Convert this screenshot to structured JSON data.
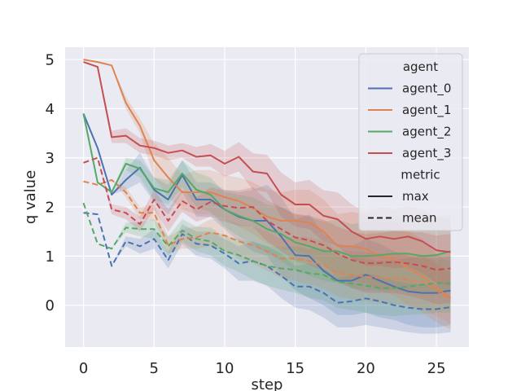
{
  "chart_data": {
    "type": "line",
    "title": "",
    "xlabel": "step",
    "ylabel": "q value",
    "xlim": [
      -1.3,
      27.3
    ],
    "ylim": [
      -0.85,
      5.25
    ],
    "xticks": [
      0,
      5,
      10,
      15,
      20,
      25
    ],
    "yticks": [
      0,
      1,
      2,
      3,
      4,
      5
    ],
    "grid": true,
    "legend_position": "top-right",
    "legend": {
      "hue_title": "agent",
      "style_title": "metric",
      "style_entries": [
        {
          "label": "max",
          "dash": "solid"
        },
        {
          "label": "mean",
          "dash": "dashed"
        }
      ]
    },
    "x": [
      0,
      1,
      2,
      3,
      4,
      5,
      6,
      7,
      8,
      9,
      10,
      11,
      12,
      13,
      14,
      15,
      16,
      17,
      18,
      19,
      20,
      21,
      22,
      23,
      24,
      25,
      26
    ],
    "series": [
      {
        "name": "agent_0",
        "metric": "max",
        "color": "#4c72b0",
        "values": [
          3.9,
          3.2,
          2.25,
          2.55,
          2.8,
          2.35,
          2.15,
          2.65,
          2.15,
          2.15,
          1.95,
          1.8,
          1.72,
          1.72,
          1.4,
          1.02,
          1.0,
          0.7,
          0.5,
          0.5,
          0.62,
          0.5,
          0.38,
          0.28,
          0.25,
          0.25,
          0.3
        ],
        "lower": [
          3.9,
          3.2,
          2.25,
          2.35,
          2.5,
          2.1,
          1.85,
          2.3,
          1.8,
          1.8,
          1.55,
          1.3,
          1.1,
          1.0,
          0.6,
          0.3,
          0.15,
          0.0,
          -0.2,
          -0.2,
          -0.15,
          -0.25,
          -0.3,
          -0.4,
          -0.45,
          -0.45,
          -0.4
        ],
        "upper": [
          3.9,
          3.2,
          2.25,
          2.75,
          3.1,
          2.6,
          2.45,
          2.95,
          2.5,
          2.5,
          2.35,
          2.3,
          2.35,
          2.45,
          2.2,
          1.75,
          1.85,
          1.45,
          1.25,
          1.2,
          1.35,
          1.25,
          1.1,
          1.0,
          0.95,
          0.95,
          1.0
        ]
      },
      {
        "name": "agent_0",
        "metric": "mean",
        "color": "#4c72b0",
        "values": [
          1.88,
          1.85,
          0.8,
          1.3,
          1.2,
          1.35,
          0.92,
          1.45,
          1.25,
          1.22,
          1.05,
          0.85,
          0.9,
          0.8,
          0.6,
          0.38,
          0.38,
          0.25,
          0.05,
          0.08,
          0.14,
          0.08,
          0.0,
          -0.05,
          -0.08,
          -0.08,
          -0.04
        ],
        "lower": [
          1.88,
          1.85,
          0.8,
          1.2,
          1.05,
          1.15,
          0.75,
          1.25,
          1.0,
          0.95,
          0.75,
          0.5,
          0.5,
          0.4,
          0.15,
          -0.05,
          -0.1,
          -0.25,
          -0.45,
          -0.45,
          -0.4,
          -0.45,
          -0.5,
          -0.55,
          -0.58,
          -0.58,
          -0.55
        ],
        "upper": [
          1.88,
          1.85,
          0.8,
          1.4,
          1.35,
          1.55,
          1.1,
          1.65,
          1.5,
          1.5,
          1.35,
          1.2,
          1.3,
          1.2,
          1.05,
          0.8,
          0.85,
          0.75,
          0.55,
          0.6,
          0.65,
          0.6,
          0.5,
          0.45,
          0.42,
          0.42,
          0.47
        ]
      },
      {
        "name": "agent_1",
        "metric": "max",
        "color": "#dd8452",
        "values": [
          5.0,
          4.95,
          4.88,
          4.12,
          3.65,
          2.95,
          2.6,
          2.3,
          2.3,
          2.3,
          2.2,
          2.12,
          1.98,
          1.8,
          1.72,
          1.72,
          1.68,
          1.5,
          1.2,
          1.2,
          1.15,
          1.0,
          0.95,
          0.75,
          0.6,
          0.35,
          0.15
        ],
        "lower": [
          5.0,
          4.95,
          4.88,
          4.0,
          3.5,
          2.6,
          2.2,
          1.95,
          1.85,
          1.85,
          1.75,
          1.6,
          1.45,
          1.25,
          1.15,
          1.1,
          1.0,
          0.85,
          0.55,
          0.5,
          0.45,
          0.3,
          0.2,
          0.0,
          -0.15,
          -0.35,
          -0.5
        ],
        "upper": [
          5.0,
          4.95,
          4.88,
          4.25,
          3.8,
          3.3,
          3.0,
          2.65,
          2.75,
          2.75,
          2.65,
          2.6,
          2.5,
          2.35,
          2.3,
          2.35,
          2.35,
          2.15,
          1.85,
          1.9,
          1.85,
          1.7,
          1.7,
          1.5,
          1.35,
          1.05,
          0.85
        ]
      },
      {
        "name": "agent_1",
        "metric": "mean",
        "color": "#dd8452",
        "values": [
          2.52,
          2.45,
          2.55,
          2.3,
          1.88,
          1.88,
          1.22,
          1.35,
          1.38,
          1.48,
          1.42,
          1.3,
          1.22,
          1.1,
          0.95,
          0.95,
          0.9,
          0.82,
          0.65,
          0.62,
          0.58,
          0.55,
          0.55,
          0.52,
          0.48,
          0.3,
          0.12
        ],
        "lower": [
          2.52,
          2.45,
          2.55,
          2.2,
          1.75,
          1.72,
          1.05,
          1.15,
          1.15,
          1.2,
          1.1,
          0.95,
          0.85,
          0.7,
          0.55,
          0.5,
          0.42,
          0.35,
          0.18,
          0.12,
          0.08,
          0.05,
          0.02,
          -0.02,
          -0.08,
          -0.22,
          -0.38
        ],
        "upper": [
          2.52,
          2.45,
          2.55,
          2.4,
          2.0,
          2.05,
          1.4,
          1.55,
          1.6,
          1.75,
          1.75,
          1.65,
          1.6,
          1.5,
          1.35,
          1.4,
          1.38,
          1.3,
          1.12,
          1.1,
          1.08,
          1.05,
          1.05,
          1.05,
          1.02,
          0.85,
          0.65
        ]
      },
      {
        "name": "agent_2",
        "metric": "max",
        "color": "#55a868",
        "values": [
          3.9,
          2.5,
          2.3,
          2.88,
          2.78,
          2.38,
          2.3,
          2.68,
          2.35,
          2.25,
          1.95,
          1.82,
          1.72,
          1.55,
          1.45,
          1.28,
          1.2,
          1.1,
          1.1,
          1.0,
          1.0,
          1.02,
          1.05,
          1.05,
          1.0,
          1.02,
          1.1
        ],
        "lower": [
          3.9,
          2.5,
          2.3,
          2.75,
          2.6,
          2.15,
          2.05,
          2.4,
          2.0,
          1.9,
          1.6,
          1.4,
          1.25,
          1.05,
          0.9,
          0.7,
          0.6,
          0.5,
          0.45,
          0.35,
          0.3,
          0.3,
          0.3,
          0.3,
          0.25,
          0.25,
          0.3
        ],
        "upper": [
          3.9,
          2.5,
          2.3,
          3.0,
          2.95,
          2.6,
          2.55,
          2.95,
          2.7,
          2.6,
          2.3,
          2.25,
          2.2,
          2.05,
          2.0,
          1.85,
          1.8,
          1.7,
          1.75,
          1.65,
          1.7,
          1.75,
          1.8,
          1.8,
          1.75,
          1.8,
          1.85
        ]
      },
      {
        "name": "agent_2",
        "metric": "mean",
        "color": "#55a868",
        "values": [
          2.08,
          1.25,
          1.15,
          1.58,
          1.55,
          1.55,
          1.2,
          1.52,
          1.35,
          1.3,
          1.1,
          1.02,
          0.9,
          0.8,
          0.75,
          0.72,
          0.65,
          0.62,
          0.48,
          0.44,
          0.4,
          0.35,
          0.35,
          0.38,
          0.42,
          0.45,
          0.45
        ],
        "lower": [
          2.08,
          1.25,
          1.15,
          1.48,
          1.4,
          1.35,
          1.0,
          1.3,
          1.1,
          1.02,
          0.8,
          0.68,
          0.52,
          0.4,
          0.32,
          0.25,
          0.15,
          0.1,
          -0.05,
          -0.1,
          -0.15,
          -0.2,
          -0.22,
          -0.2,
          -0.18,
          -0.15,
          -0.15
        ],
        "upper": [
          2.08,
          1.25,
          1.15,
          1.68,
          1.7,
          1.75,
          1.4,
          1.75,
          1.6,
          1.58,
          1.4,
          1.35,
          1.28,
          1.2,
          1.18,
          1.2,
          1.15,
          1.15,
          1.02,
          0.98,
          0.95,
          0.9,
          0.92,
          0.96,
          1.0,
          1.05,
          1.05
        ]
      },
      {
        "name": "agent_3",
        "metric": "max",
        "color": "#c44e52",
        "values": [
          4.95,
          4.85,
          3.42,
          3.45,
          3.25,
          3.2,
          3.1,
          3.15,
          3.02,
          3.05,
          2.88,
          3.02,
          2.72,
          2.68,
          2.25,
          2.05,
          2.05,
          1.82,
          1.75,
          1.5,
          1.35,
          1.4,
          1.35,
          1.4,
          1.3,
          1.12,
          1.08
        ],
        "lower": [
          4.95,
          4.85,
          3.3,
          3.3,
          3.1,
          3.05,
          2.95,
          3.0,
          2.82,
          2.82,
          2.62,
          2.72,
          2.35,
          2.3,
          1.8,
          1.6,
          1.55,
          1.3,
          1.2,
          0.95,
          0.8,
          0.8,
          0.75,
          0.78,
          0.65,
          0.45,
          0.4
        ],
        "upper": [
          4.95,
          4.85,
          3.55,
          3.6,
          3.4,
          3.35,
          3.25,
          3.3,
          3.22,
          3.28,
          3.14,
          3.32,
          3.09,
          3.06,
          2.7,
          2.5,
          2.55,
          2.34,
          2.3,
          2.05,
          1.9,
          2.0,
          1.95,
          2.02,
          1.95,
          1.79,
          1.76
        ]
      },
      {
        "name": "agent_3",
        "metric": "mean",
        "color": "#c44e52",
        "values": [
          2.9,
          3.0,
          1.95,
          1.88,
          1.65,
          2.15,
          1.72,
          2.12,
          1.95,
          2.1,
          2.02,
          1.98,
          2.0,
          1.72,
          1.55,
          1.38,
          1.32,
          1.22,
          1.05,
          0.92,
          0.85,
          0.86,
          0.88,
          0.85,
          0.8,
          0.72,
          0.75
        ],
        "lower": [
          2.9,
          3.0,
          1.85,
          1.75,
          1.5,
          1.95,
          1.5,
          1.9,
          1.7,
          1.8,
          1.7,
          1.62,
          1.6,
          1.3,
          1.1,
          0.9,
          0.82,
          0.7,
          0.5,
          0.35,
          0.25,
          0.25,
          0.25,
          0.2,
          0.12,
          0.02,
          0.05
        ],
        "upper": [
          2.9,
          3.0,
          2.05,
          2.0,
          1.8,
          2.35,
          1.95,
          2.35,
          2.2,
          2.4,
          2.34,
          2.34,
          2.4,
          2.14,
          2.0,
          1.86,
          1.82,
          1.74,
          1.6,
          1.49,
          1.45,
          1.47,
          1.51,
          1.5,
          1.48,
          1.42,
          1.45
        ]
      }
    ]
  }
}
